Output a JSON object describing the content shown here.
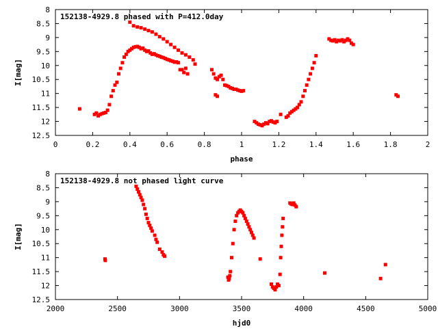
{
  "colors": {
    "points": "#ff0000",
    "axis": "#000000",
    "background": "#ffffff"
  },
  "chart_data": [
    {
      "type": "scatter",
      "title": "152138-4929.8 phased with P=412.0day",
      "xlabel": "phase",
      "ylabel": "I[mag]",
      "xlim": [
        0,
        2
      ],
      "ylim": [
        8,
        12.5
      ],
      "y_inverted": true,
      "grid": false,
      "x_ticks": [
        "0",
        "0.2",
        "0.4",
        "0.6",
        "0.8",
        "1",
        "1.2",
        "1.4",
        "1.6",
        "1.8",
        "2"
      ],
      "y_ticks": [
        "8",
        "8.5",
        "9",
        "9.5",
        "10",
        "10.5",
        "11",
        "11.5",
        "12",
        "12.5"
      ],
      "series": [
        {
          "x": [
            0.13,
            0.21,
            0.22,
            0.23,
            0.24,
            0.25,
            0.26,
            0.27,
            0.28,
            0.29,
            0.3,
            0.31,
            0.32,
            0.33,
            0.34,
            0.35,
            0.36,
            0.37,
            0.38,
            0.39,
            0.4,
            0.41,
            0.42,
            0.43,
            0.44,
            0.45,
            0.46,
            0.47,
            0.48,
            0.49,
            0.5,
            0.51,
            0.52,
            0.53,
            0.54,
            0.55,
            0.56,
            0.57,
            0.58,
            0.59,
            0.6,
            0.61,
            0.62,
            0.63,
            0.64,
            0.65,
            0.66,
            0.67,
            0.4,
            0.42,
            0.44,
            0.46,
            0.48,
            0.5,
            0.52,
            0.54,
            0.56,
            0.58,
            0.6,
            0.62,
            0.64,
            0.66,
            0.68,
            0.7,
            0.72,
            0.74,
            0.75,
            0.68,
            0.69,
            0.7,
            0.71,
            0.84,
            0.85,
            0.86,
            0.87,
            0.88,
            0.89,
            0.9,
            0.86,
            0.87,
            0.91,
            0.92,
            0.93,
            0.94,
            0.95,
            0.96,
            0.97,
            0.98,
            0.99,
            1.0,
            1.01,
            1.07,
            1.08,
            1.09,
            1.1,
            1.11,
            1.12,
            1.13,
            1.14,
            1.15,
            1.16,
            1.17,
            1.18,
            1.19,
            1.21,
            1.24,
            1.25,
            1.26,
            1.27,
            1.28,
            1.29,
            1.3,
            1.31,
            1.32,
            1.33,
            1.34,
            1.35,
            1.36,
            1.37,
            1.38,
            1.39,
            1.4,
            1.47,
            1.48,
            1.49,
            1.5,
            1.51,
            1.52,
            1.53,
            1.54,
            1.55,
            1.56,
            1.57,
            1.58,
            1.59,
            1.6,
            1.83,
            1.84
          ],
          "y": [
            11.55,
            11.75,
            11.7,
            11.8,
            11.75,
            11.72,
            11.7,
            11.68,
            11.6,
            11.4,
            11.1,
            10.9,
            10.7,
            10.6,
            10.3,
            10.1,
            9.9,
            9.7,
            9.6,
            9.5,
            9.45,
            9.4,
            9.35,
            9.33,
            9.32,
            9.35,
            9.4,
            9.38,
            9.45,
            9.5,
            9.48,
            9.55,
            9.6,
            9.58,
            9.62,
            9.65,
            9.67,
            9.7,
            9.72,
            9.75,
            9.78,
            9.8,
            9.83,
            9.85,
            9.88,
            9.87,
            9.9,
            10.15,
            8.45,
            8.58,
            8.62,
            8.65,
            8.7,
            8.75,
            8.8,
            8.88,
            8.97,
            9.05,
            9.15,
            9.25,
            9.35,
            9.45,
            9.55,
            9.62,
            9.7,
            9.8,
            9.95,
            10.15,
            10.25,
            10.1,
            10.3,
            10.15,
            10.3,
            10.45,
            10.5,
            10.4,
            10.35,
            10.5,
            11.05,
            11.1,
            10.7,
            10.72,
            10.75,
            10.8,
            10.82,
            10.85,
            10.85,
            10.88,
            10.9,
            10.92,
            10.9,
            12.0,
            12.05,
            12.1,
            12.12,
            12.15,
            12.1,
            12.05,
            12.08,
            12.0,
            11.98,
            12.02,
            12.05,
            12.0,
            11.75,
            11.85,
            11.8,
            11.7,
            11.65,
            11.6,
            11.55,
            11.5,
            11.4,
            11.3,
            11.1,
            10.9,
            10.7,
            10.5,
            10.3,
            10.1,
            9.9,
            9.65,
            9.05,
            9.1,
            9.12,
            9.08,
            9.15,
            9.1,
            9.12,
            9.08,
            9.15,
            9.1,
            9.05,
            9.1,
            9.2,
            9.25,
            11.05,
            11.1
          ]
        }
      ]
    },
    {
      "type": "scatter",
      "title": "152138-4929.8 not phased light curve",
      "xlabel": "hjd0",
      "ylabel": "I[mag]",
      "xlim": [
        2000,
        5000
      ],
      "ylim": [
        8,
        12.5
      ],
      "y_inverted": true,
      "grid": false,
      "x_ticks": [
        "2000",
        "2500",
        "3000",
        "3500",
        "4000",
        "4500",
        "5000"
      ],
      "y_ticks": [
        "8",
        "8.5",
        "9",
        "9.5",
        "10",
        "10.5",
        "11",
        "11.5",
        "12",
        "12.5"
      ],
      "series": [
        {
          "x": [
            2400,
            2402,
            2650,
            2660,
            2670,
            2680,
            2690,
            2700,
            2710,
            2720,
            2730,
            2740,
            2750,
            2760,
            2770,
            2780,
            2800,
            2810,
            2820,
            2840,
            2860,
            2870,
            2880,
            3390,
            3395,
            3400,
            3405,
            3410,
            3420,
            3430,
            3440,
            3450,
            3460,
            3470,
            3480,
            3490,
            3500,
            3510,
            3520,
            3530,
            3540,
            3550,
            3560,
            3570,
            3580,
            3590,
            3600,
            3650,
            3740,
            3750,
            3760,
            3770,
            3780,
            3790,
            3800,
            3810,
            3815,
            3820,
            3825,
            3830,
            3835,
            3890,
            3900,
            3910,
            3920,
            3930,
            3940,
            4170,
            4620,
            4660
          ],
          "y": [
            11.05,
            11.1,
            8.45,
            8.55,
            8.65,
            8.75,
            8.85,
            8.95,
            9.1,
            9.25,
            9.45,
            9.6,
            9.75,
            9.85,
            9.95,
            10.05,
            10.2,
            10.35,
            10.45,
            10.7,
            10.8,
            10.9,
            10.95,
            11.7,
            11.8,
            11.75,
            11.65,
            11.5,
            11.0,
            10.5,
            10.0,
            9.7,
            9.5,
            9.4,
            9.35,
            9.3,
            9.35,
            9.4,
            9.5,
            9.6,
            9.7,
            9.8,
            9.9,
            10.0,
            10.1,
            10.2,
            10.3,
            11.05,
            11.95,
            12.05,
            12.1,
            12.15,
            12.05,
            11.95,
            12.0,
            11.6,
            11.0,
            10.6,
            10.2,
            9.9,
            9.6,
            9.05,
            9.08,
            9.1,
            9.05,
            9.12,
            9.18,
            11.55,
            11.75,
            11.25
          ]
        }
      ]
    }
  ]
}
